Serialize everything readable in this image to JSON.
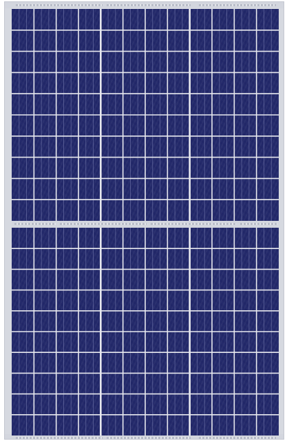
{
  "photo": {
    "subject": "solar-panel",
    "colors": {
      "cell": "#242a6b",
      "frame": "#d6d9e0",
      "grid_line": "#e8e9ef",
      "busbar": "#b8bcc8"
    },
    "cell_columns": 12,
    "upper_cell_rows": 10,
    "lower_cell_rows": 10
  }
}
